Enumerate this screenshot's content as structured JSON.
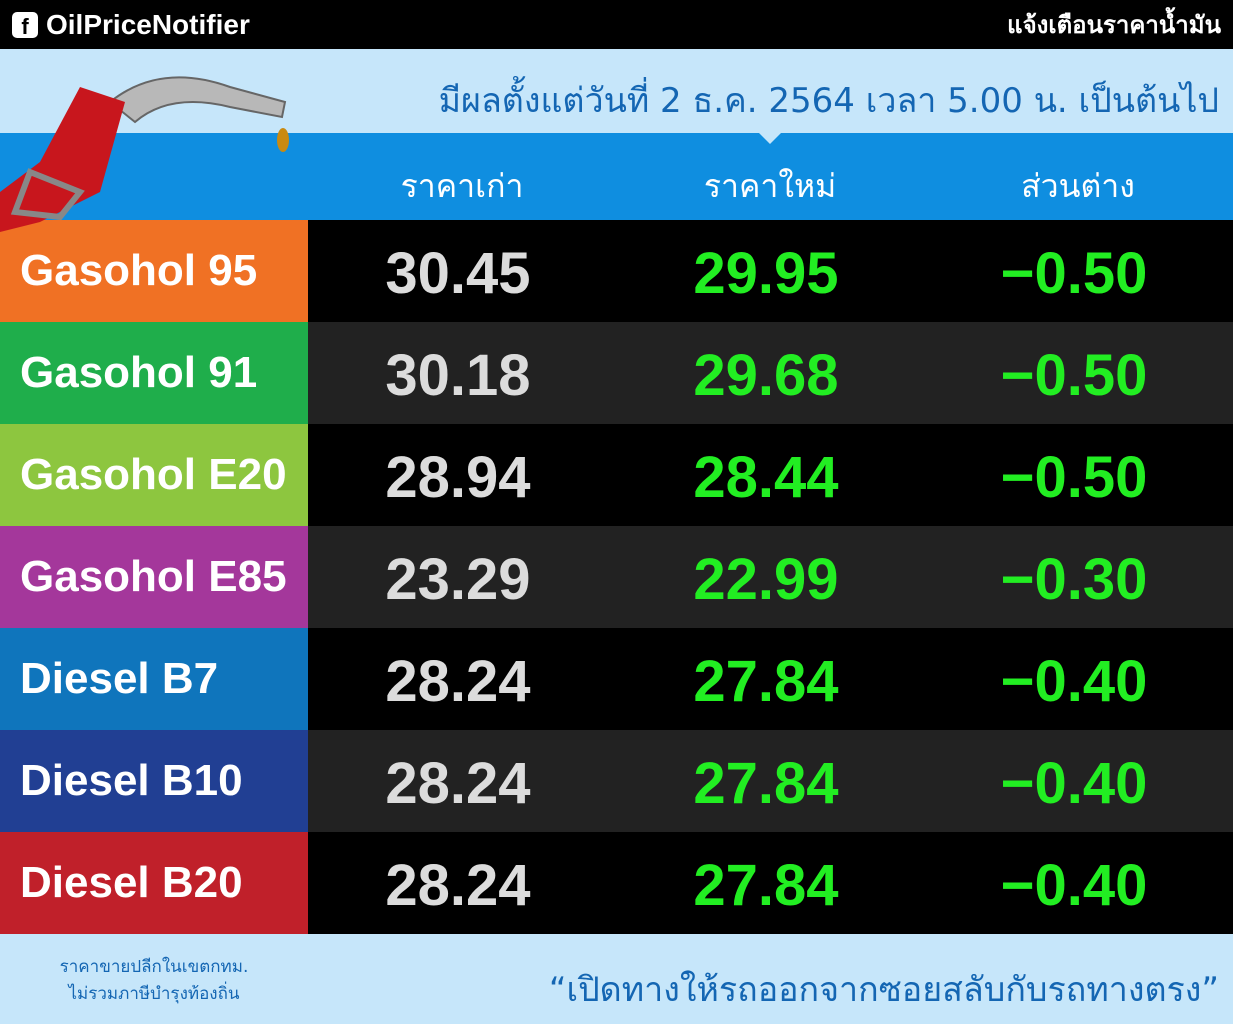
{
  "header": {
    "brand": "OilPriceNotifier",
    "brand_icon": "facebook-icon",
    "tagline": "แจ้งเตือนราคาน้ำมัน"
  },
  "effective": "มีผลตั้งแต่วันที่ 2 ธ.ค. 2564 เวลา 5.00 น. เป็นต้นไป",
  "columns": [
    "ราคาเก่า",
    "ราคาใหม่",
    "ส่วนต่าง"
  ],
  "rows": [
    {
      "fuel": "Gasohol 95",
      "old": "30.45",
      "new": "29.95",
      "diff": "−0.50",
      "color": "#f07124"
    },
    {
      "fuel": "Gasohol 91",
      "old": "30.18",
      "new": "29.68",
      "diff": "−0.50",
      "color": "#1fae4b"
    },
    {
      "fuel": "Gasohol E20",
      "old": "28.94",
      "new": "28.44",
      "diff": "−0.50",
      "color": "#8dc63f"
    },
    {
      "fuel": "Gasohol E85",
      "old": "23.29",
      "new": "22.99",
      "diff": "−0.30",
      "color": "#a4379b"
    },
    {
      "fuel": "Diesel B7",
      "old": "28.24",
      "new": "27.84",
      "diff": "−0.40",
      "color": "#0f75bc"
    },
    {
      "fuel": "Diesel B10",
      "old": "28.24",
      "new": "27.84",
      "diff": "−0.40",
      "color": "#213f93"
    },
    {
      "fuel": "Diesel B20",
      "old": "28.24",
      "new": "27.84",
      "diff": "−0.40",
      "color": "#c0202a"
    }
  ],
  "footer": {
    "note_line1": "ราคาขายปลีกในเขตกทม.",
    "note_line2": "ไม่รวมภาษีบำรุงท้องถิ่น",
    "slogan": "“เปิดทางให้รถออกจากซอยสลับกับรถทางตรง”"
  },
  "colors": {
    "new_price": "#22ee22",
    "old_price": "#dcdcdc",
    "header_bar": "#0f8ee0",
    "text_blue": "#1466b3"
  }
}
